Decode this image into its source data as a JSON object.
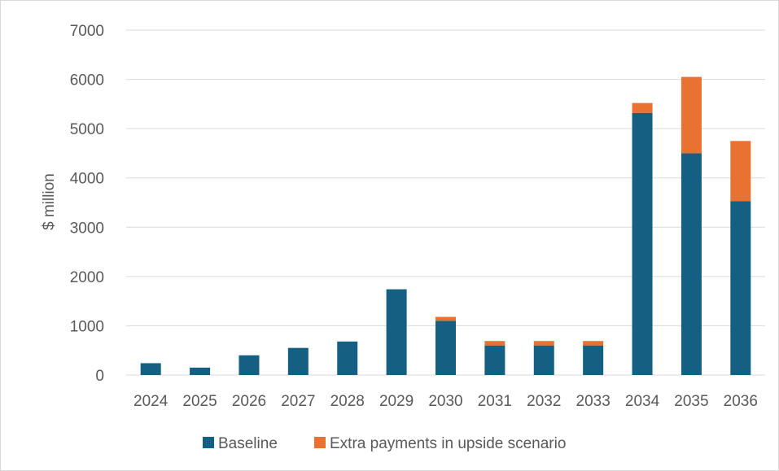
{
  "chart_data": {
    "type": "bar",
    "stacked": true,
    "title": "",
    "xlabel": "",
    "ylabel": "$ million",
    "ylim": [
      0,
      7000
    ],
    "yticks": [
      0,
      1000,
      2000,
      3000,
      4000,
      5000,
      6000,
      7000
    ],
    "grid": true,
    "legend_position": "bottom",
    "categories": [
      "2024",
      "2025",
      "2026",
      "2027",
      "2028",
      "2029",
      "2030",
      "2031",
      "2032",
      "2033",
      "2034",
      "2035",
      "2036"
    ],
    "series": [
      {
        "name": "Baseline",
        "color": "#156082",
        "values": [
          240,
          150,
          400,
          550,
          680,
          1740,
          1100,
          600,
          600,
          600,
          5320,
          4500,
          3530
        ]
      },
      {
        "name": "Extra payments in upside scenario",
        "color": "#E97132",
        "values": [
          0,
          0,
          0,
          0,
          0,
          0,
          80,
          90,
          90,
          90,
          200,
          1550,
          1220
        ]
      }
    ]
  }
}
